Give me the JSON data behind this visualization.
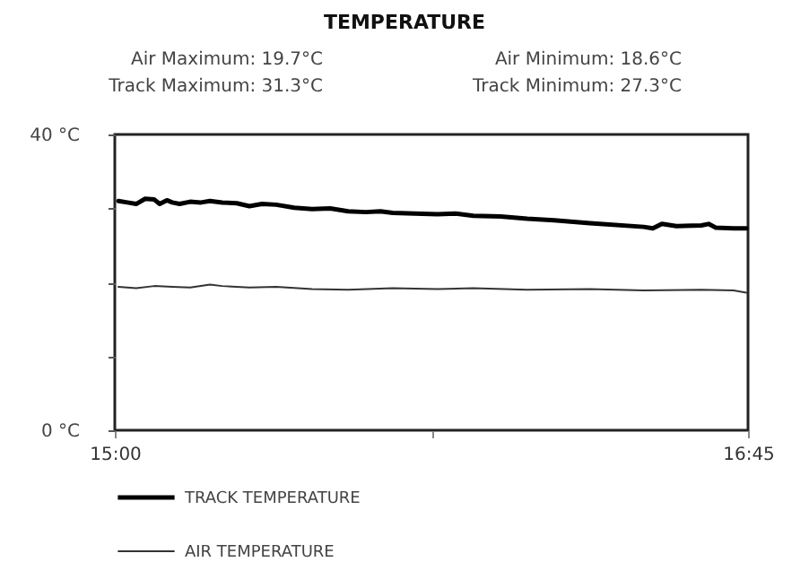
{
  "chart_data": {
    "type": "line",
    "title": "TEMPERATURE",
    "annotations": [
      "Air Maximum: 19.7°C",
      "Air Minimum: 18.6°C",
      "Track Maximum: 31.3°C",
      "Track Minimum: 27.3°C"
    ],
    "series": [
      {
        "name": "TRACK TEMPERATURE",
        "color": "#000000",
        "x": [
          15.01,
          15.035,
          15.059,
          15.084,
          15.109,
          15.124,
          15.144,
          15.159,
          15.179,
          15.208,
          15.238,
          15.263,
          15.297,
          15.337,
          15.372,
          15.407,
          15.446,
          15.496,
          15.545,
          15.595,
          15.645,
          15.694,
          15.734,
          15.768,
          15.828,
          15.892,
          15.942,
          15.991,
          16.066,
          16.14,
          16.214,
          16.313,
          16.462,
          16.487,
          16.512,
          16.552,
          16.621,
          16.641,
          16.661,
          16.71,
          16.745
        ],
        "values": [
          31.0,
          30.8,
          30.6,
          31.3,
          31.2,
          30.6,
          31.1,
          30.8,
          30.6,
          30.9,
          30.8,
          31.0,
          30.8,
          30.7,
          30.3,
          30.6,
          30.5,
          30.1,
          29.9,
          30.0,
          29.6,
          29.5,
          29.6,
          29.4,
          29.3,
          29.2,
          29.3,
          29.0,
          28.9,
          28.6,
          28.4,
          28.0,
          27.5,
          27.3,
          27.9,
          27.6,
          27.7,
          27.9,
          27.4,
          27.3,
          27.3
        ]
      },
      {
        "name": "AIR TEMPERATURE",
        "color": "#333333",
        "x": [
          15.01,
          15.059,
          15.109,
          15.159,
          15.208,
          15.263,
          15.297,
          15.372,
          15.446,
          15.545,
          15.645,
          15.768,
          15.892,
          15.991,
          16.14,
          16.313,
          16.462,
          16.621,
          16.71,
          16.745
        ],
        "values": [
          19.4,
          19.2,
          19.5,
          19.4,
          19.3,
          19.7,
          19.5,
          19.3,
          19.4,
          19.1,
          19.0,
          19.2,
          19.1,
          19.2,
          19.0,
          19.1,
          18.9,
          19.0,
          18.9,
          18.6
        ]
      }
    ],
    "xlim": [
      15,
      16.75
    ],
    "xticks": [
      {
        "value": 15,
        "label": "15:00"
      },
      {
        "value": 15.875,
        "label": null
      },
      {
        "value": 16.75,
        "label": "16:45"
      }
    ],
    "ylim": [
      0,
      40
    ],
    "yticks": [
      {
        "value": 0,
        "label": "0 °C"
      },
      {
        "value": 10,
        "label": null
      },
      {
        "value": 20,
        "label": null
      },
      {
        "value": 30,
        "label": null
      },
      {
        "value": 40,
        "label": "40 °C"
      }
    ],
    "grid": false,
    "legend": "bottom"
  }
}
